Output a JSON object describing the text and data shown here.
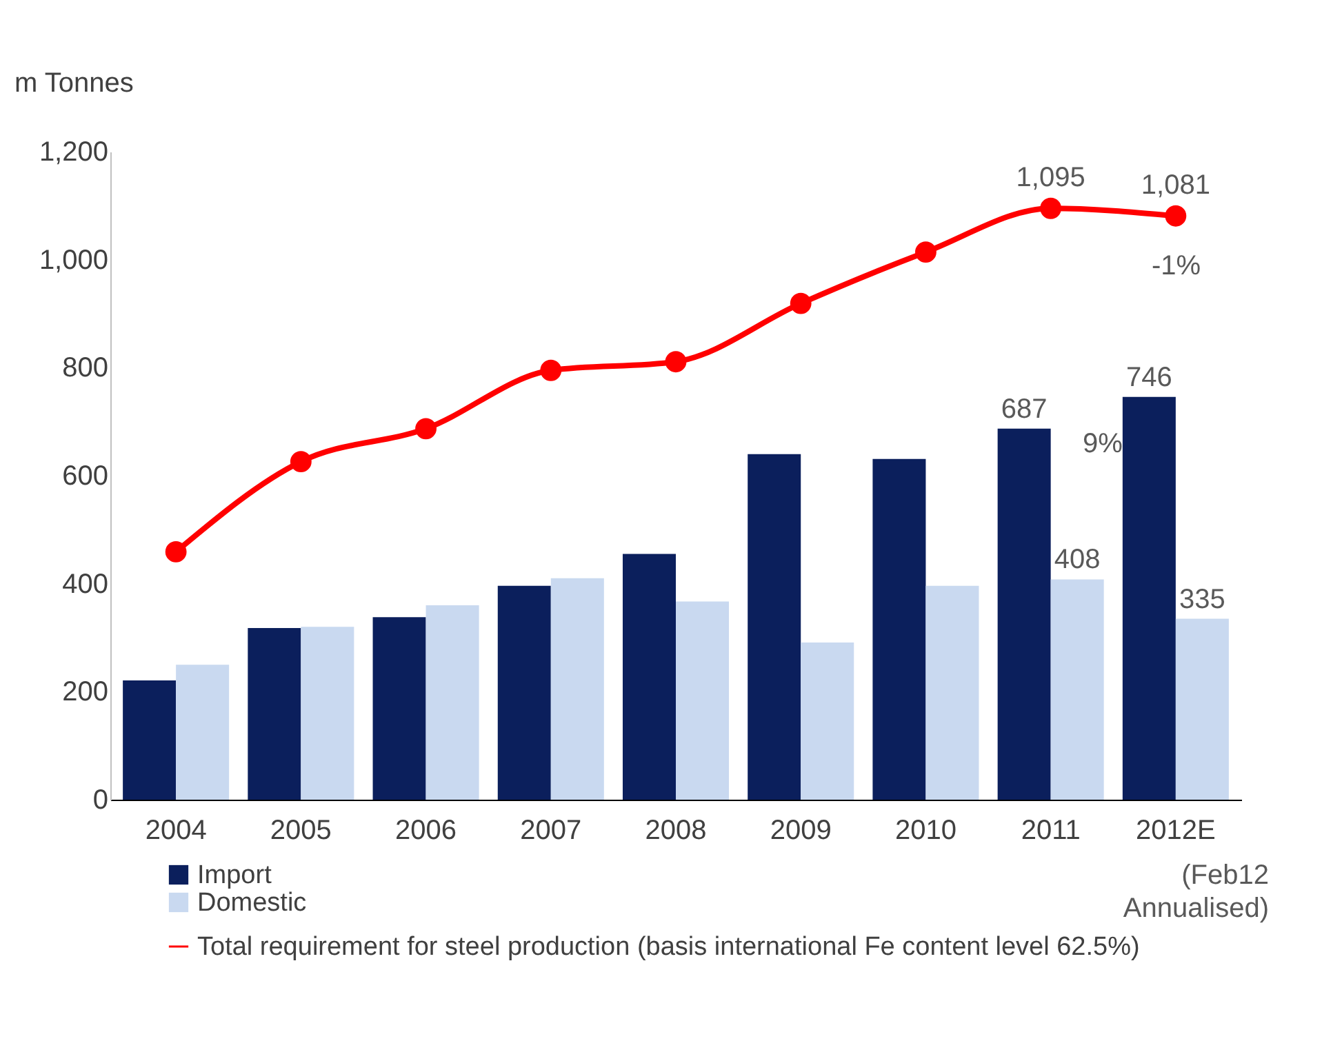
{
  "chart_data": {
    "type": "bar",
    "ylabel": "m Tonnes",
    "categories": [
      "2004",
      "2005",
      "2006",
      "2007",
      "2008",
      "2009",
      "2010",
      "2011",
      "2012E"
    ],
    "series": [
      {
        "name": "Import",
        "color": "#0b1f5c",
        "values": [
          221,
          318,
          338,
          396,
          455,
          640,
          631,
          687,
          746
        ],
        "value_labels": [
          null,
          null,
          null,
          null,
          null,
          null,
          null,
          "687",
          "746"
        ]
      },
      {
        "name": "Domestic",
        "color": "#c9d9f0",
        "values": [
          250,
          320,
          360,
          410,
          367,
          291,
          396,
          408,
          335
        ],
        "value_labels": [
          null,
          null,
          null,
          null,
          null,
          null,
          null,
          "408",
          "335"
        ]
      },
      {
        "name": "Total requirement for steel production (basis international Fe content level 62.5%)",
        "type": "line",
        "color": "#ff0000",
        "marker": "circle",
        "values": [
          459,
          626,
          687,
          795,
          811,
          919,
          1014,
          1095,
          1081
        ],
        "value_labels": [
          null,
          null,
          null,
          null,
          null,
          null,
          null,
          "1,095",
          "1,081"
        ]
      }
    ],
    "ylim": [
      0,
      1200
    ],
    "yticks": [
      0,
      200,
      400,
      600,
      800,
      {
        "value": 1000,
        "label": "1,000"
      },
      {
        "value": 1200,
        "label": "1,200"
      }
    ],
    "grid": false,
    "legend": "bottom",
    "annotations": [
      "-1%",
      "9%",
      "(Feb12 Annualised)"
    ]
  }
}
